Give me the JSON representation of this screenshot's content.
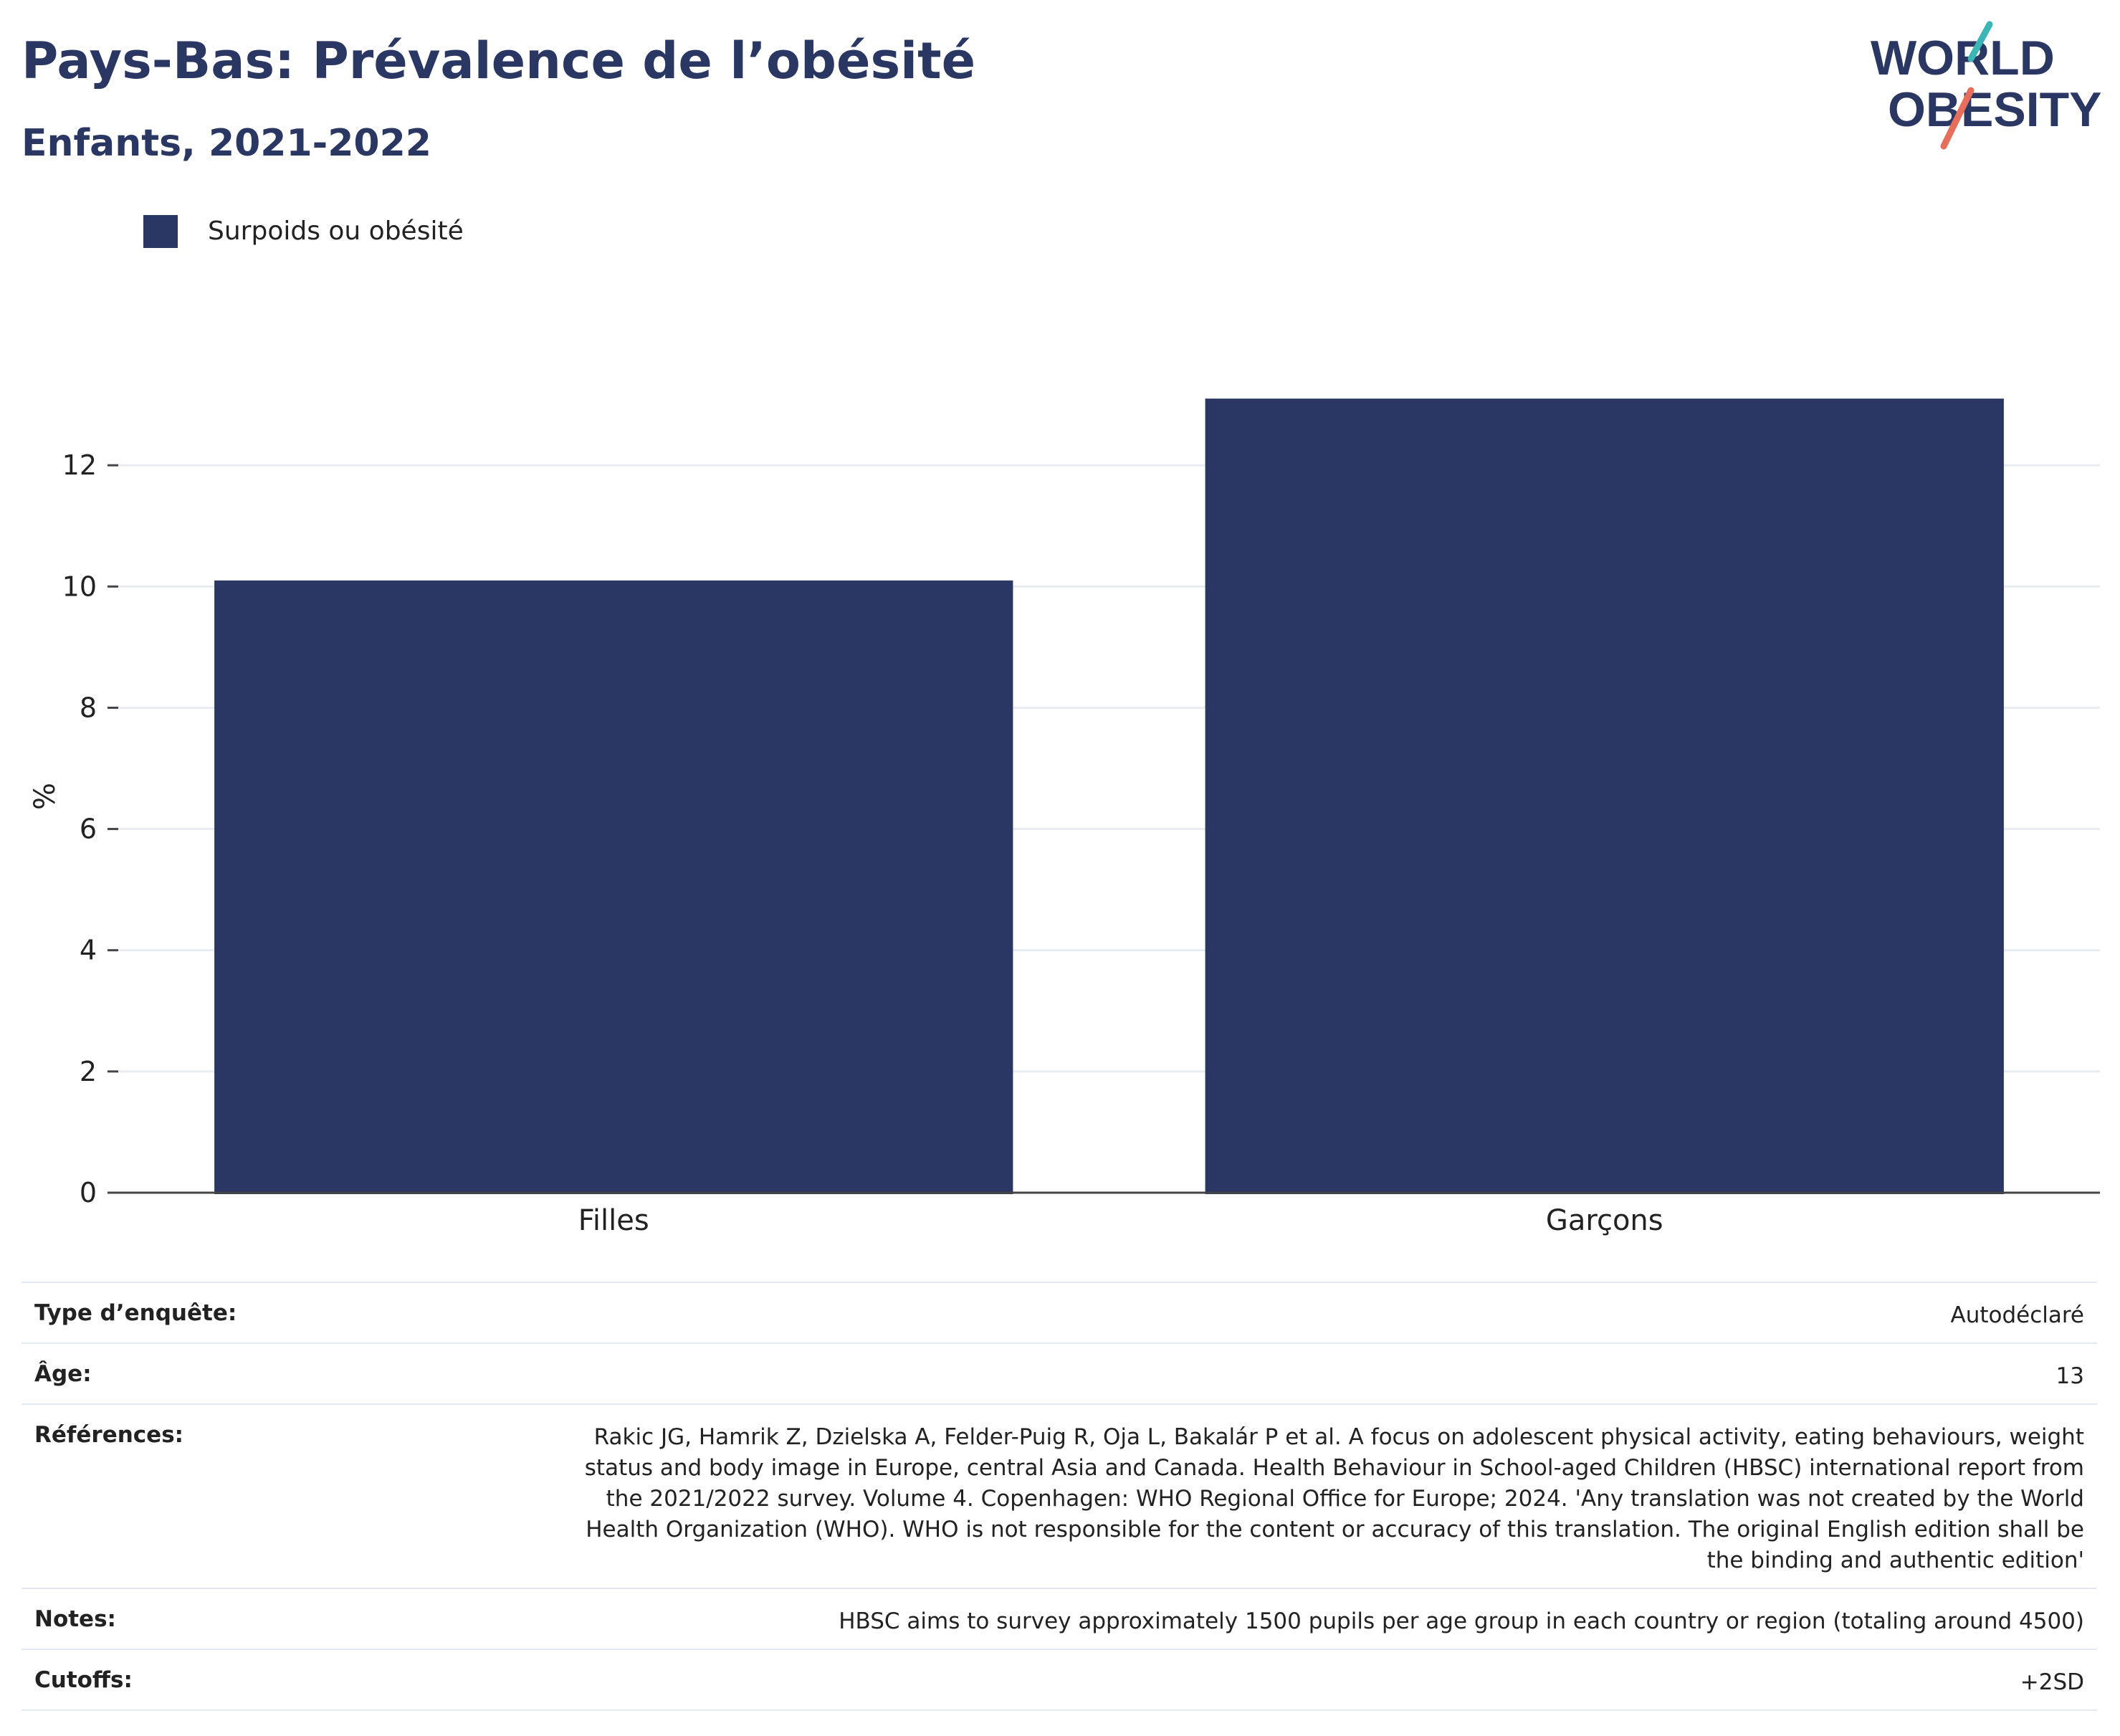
{
  "header": {
    "title": "Pays-Bas: Prévalence de l’obésité",
    "subtitle": "Enfants, 2021-2022"
  },
  "logo": {
    "line1": "WORLD",
    "line2": "OBESITY"
  },
  "colors": {
    "bar": "#2a3663",
    "title": "#2b3763",
    "logo_text": "#2b3763",
    "logo_teal": "#3bb5b6",
    "logo_coral": "#e66e5a",
    "grid": "#e9ebf2"
  },
  "chart_data": {
    "type": "bar",
    "title": "Pays-Bas: Prévalence de l’obésité",
    "subtitle": "Enfants, 2021-2022",
    "categories": [
      "Filles",
      "Garçons"
    ],
    "series": [
      {
        "name": "Surpoids ou obésité",
        "values": [
          10.1,
          13.1
        ]
      }
    ],
    "ylabel": "%",
    "xlabel": "",
    "ylim": [
      0,
      14
    ],
    "yticks": [
      0,
      2,
      4,
      6,
      8,
      10,
      12
    ],
    "grid": true,
    "legend_position": "top-left"
  },
  "info_table": [
    {
      "label": "Type d’enquête:",
      "value": "Autodéclaré"
    },
    {
      "label": "Âge:",
      "value": "13"
    },
    {
      "label": "Références:",
      "value": "Rakic JG, Hamrik Z, Dzielska A, Felder-Puig R, Oja L, Bakalár P et al. A focus on adolescent physical activity, eating behaviours, weight status and body image in Europe, central Asia and Canada. Health Behaviour in School-aged Children (HBSC) international report from the 2021/2022 survey. Volume 4. Copenhagen: WHO Regional Office for Europe; 2024. 'Any translation was not created by the World Health Organization (WHO). WHO is not responsible for the content or accuracy of this translation. The original English edition shall be the binding and authentic edition'"
    },
    {
      "label": "Notes:",
      "value": "HBSC aims to survey approximately 1500 pupils per age group in each country or region (totaling around 4500)"
    },
    {
      "label": "Cutoffs:",
      "value": "+2SD"
    }
  ]
}
